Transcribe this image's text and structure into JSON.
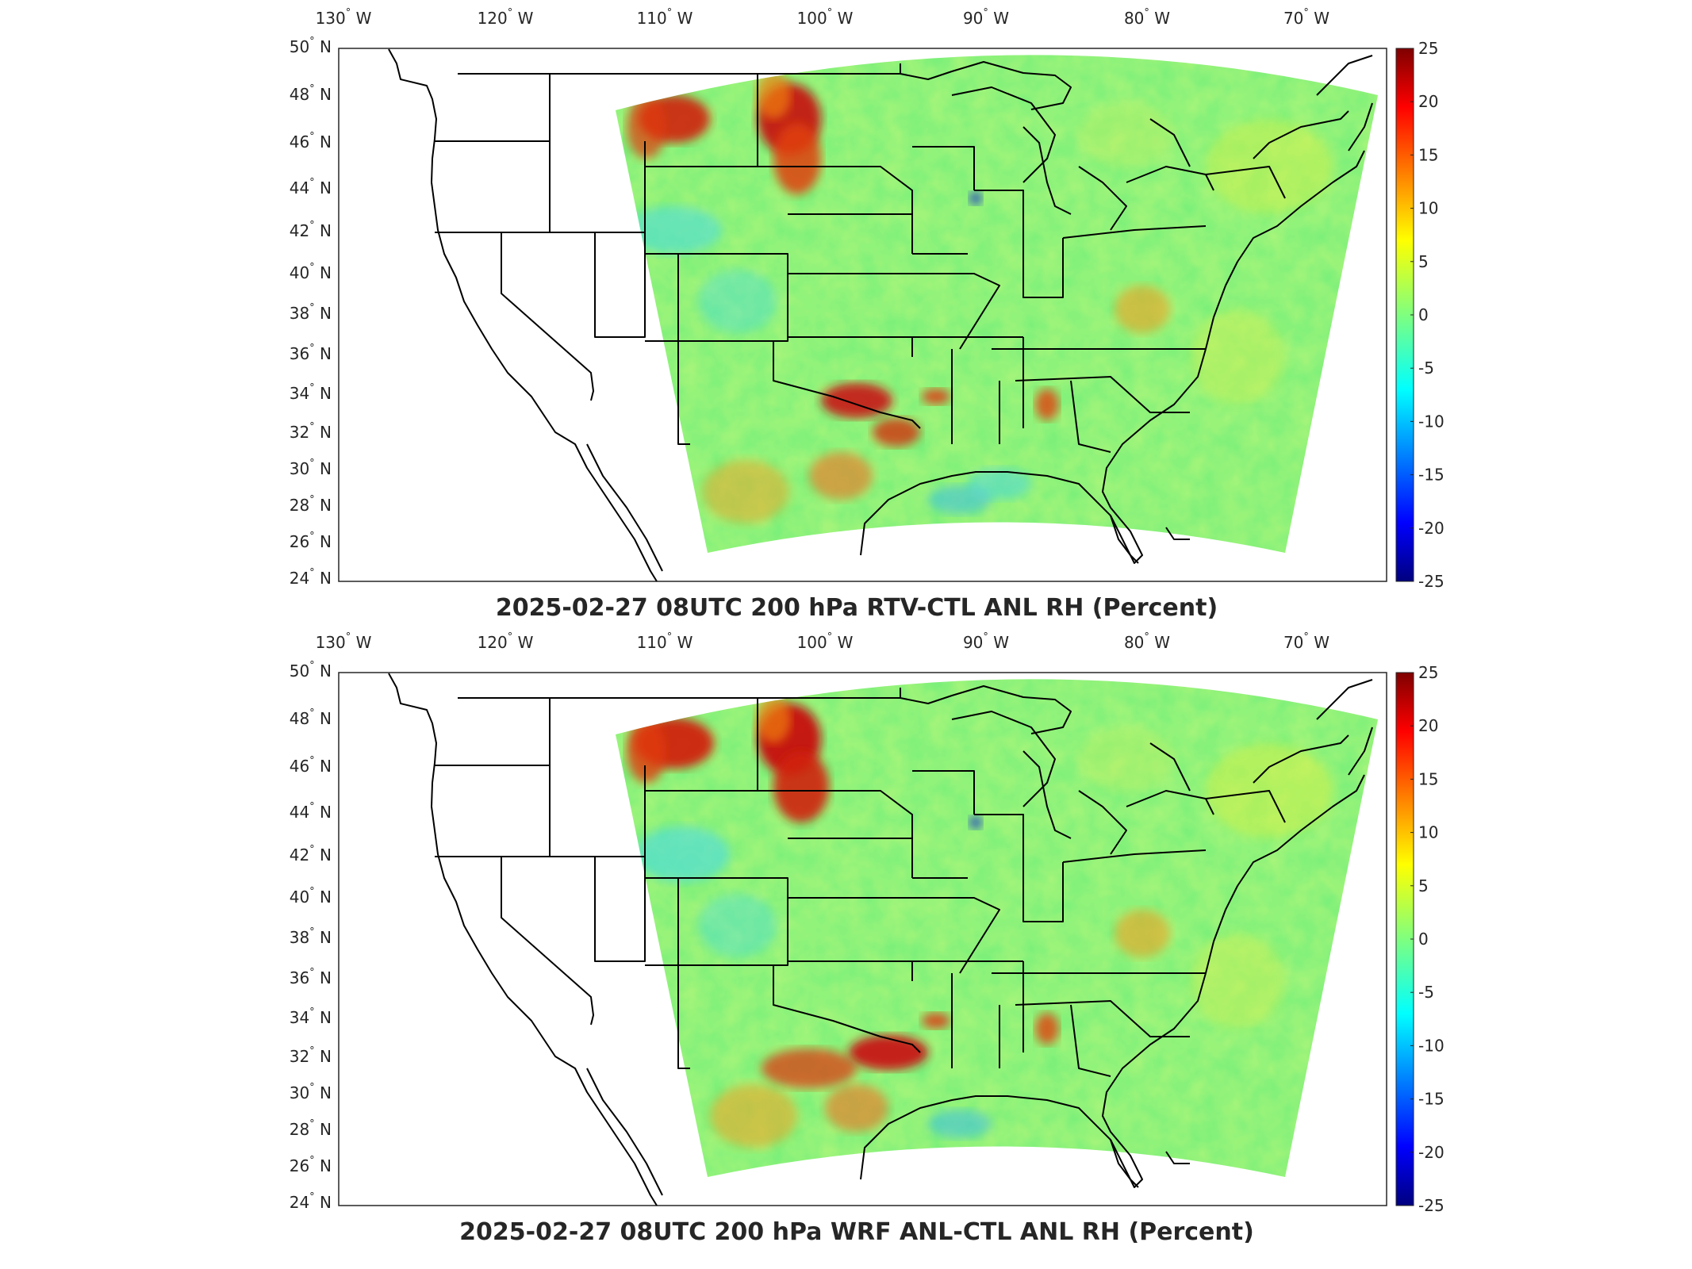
{
  "panels": [
    {
      "id": "top",
      "title": "2025-02-27 08UTC 200 hPa RTV-CTL ANL RH (Percent)",
      "lon_labels": [
        "130",
        "120",
        "110",
        "100",
        "90",
        "80",
        "70"
      ],
      "lat_labels": [
        "50",
        "48",
        "46",
        "44",
        "42",
        "40",
        "38",
        "36",
        "34",
        "32",
        "30",
        "28",
        "26",
        "24"
      ]
    },
    {
      "id": "bottom",
      "title": "2025-02-27 08UTC 200 hPa WRF ANL-CTL ANL RH (Percent)",
      "lon_labels": [
        "130",
        "120",
        "110",
        "100",
        "90",
        "80",
        "70"
      ],
      "lat_labels": [
        "50",
        "48",
        "46",
        "44",
        "42",
        "40",
        "38",
        "36",
        "34",
        "32",
        "30",
        "28",
        "26",
        "24"
      ]
    }
  ],
  "lon_suffix": "W",
  "lat_suffix": "N",
  "degree_symbol": "°",
  "colorbar": {
    "labels": [
      "25",
      "20",
      "15",
      "10",
      "5",
      "0",
      "-5",
      "-10",
      "-15",
      "-20",
      "-25"
    ],
    "min": -25,
    "max": 25,
    "colormap": "jet"
  },
  "colors": {
    "background_field": "#7cf07a",
    "positive_hotspot": "#c81010",
    "negative_hotspot": "#40c8f0",
    "boundaries": "#000000"
  }
}
